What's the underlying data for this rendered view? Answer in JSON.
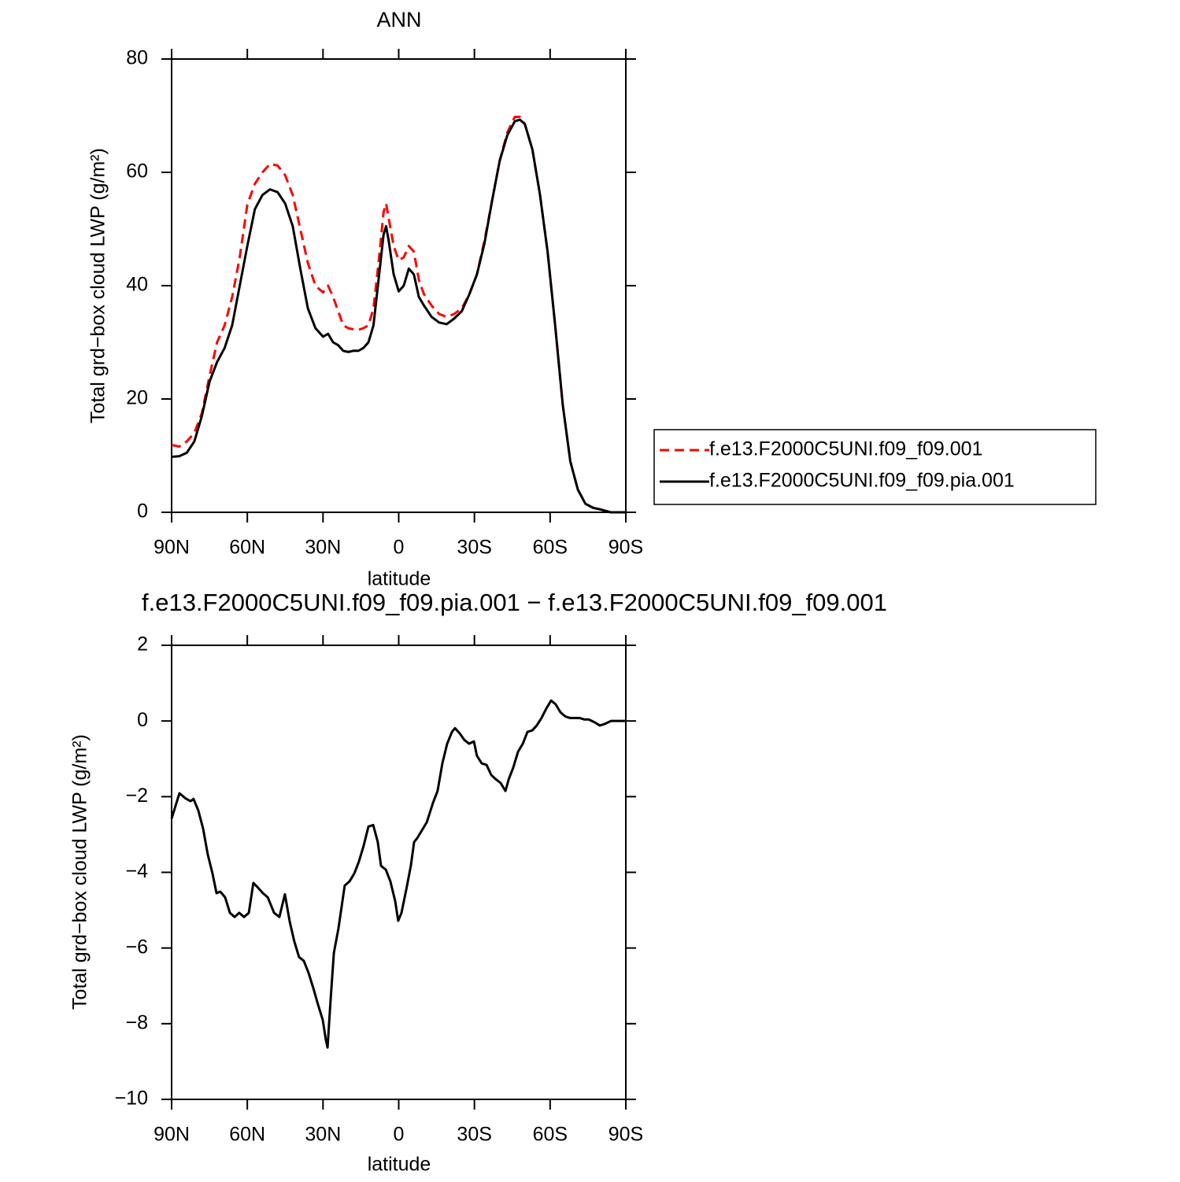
{
  "chart_data": [
    {
      "type": "line",
      "title": "ANN",
      "xlabel": "latitude",
      "ylabel": "Total grd−box cloud LWP (g/m²)",
      "x": [
        90,
        87,
        84,
        81,
        78,
        75,
        72,
        69,
        66,
        63,
        60,
        57,
        54,
        51,
        48,
        45,
        42,
        39,
        36,
        33,
        30,
        28,
        26,
        24,
        22,
        20,
        18,
        16,
        14,
        12,
        10,
        8,
        6,
        5,
        4,
        2,
        0,
        -2,
        -4,
        -6,
        -8,
        -10,
        -13,
        -16,
        -19,
        -22,
        -25,
        -28,
        -31,
        -34,
        -37,
        -40,
        -43,
        -46,
        -48,
        -50,
        -53,
        -56,
        -59,
        -62,
        -65,
        -68,
        -71,
        -74,
        -77,
        -80,
        -84,
        -90
      ],
      "series": [
        {
          "name": "f.e13.F2000C5UNI.f09_f09.001",
          "color": "#ff0000",
          "dashed": true,
          "values": [
            11.9,
            11.6,
            12.5,
            14,
            17.5,
            24,
            30,
            33,
            38,
            45,
            54.3,
            58,
            60,
            61.5,
            61.2,
            59.5,
            56,
            50,
            44,
            40,
            38.8,
            40,
            38,
            35.5,
            33,
            32.5,
            32.3,
            32.2,
            32.5,
            33,
            36,
            44,
            53,
            54.5,
            52,
            47,
            44.5,
            45,
            47,
            46,
            41,
            38.5,
            36.5,
            35,
            34.5,
            35,
            36,
            38.5,
            42,
            48,
            55,
            62,
            67,
            69.8,
            69.8,
            68.5,
            64,
            56,
            46,
            33,
            19,
            9,
            4,
            1.5,
            0.8,
            0.5,
            0,
            0
          ]
        },
        {
          "name": "f.e13.F2000C5UNI.f09_f09.pia.001",
          "color": "#000000",
          "dashed": false,
          "values": [
            9.8,
            9.9,
            10.5,
            12.5,
            17,
            23,
            26.5,
            29,
            33,
            40,
            47,
            53.5,
            56,
            57,
            56.5,
            54.5,
            50.5,
            43,
            36,
            32.5,
            31,
            31.5,
            30,
            29.5,
            28.5,
            28.3,
            28.5,
            28.5,
            29,
            30,
            33,
            41,
            49,
            50.5,
            48,
            42,
            39,
            40,
            43,
            42,
            38,
            36.5,
            34.5,
            33.5,
            33.2,
            34.2,
            35.5,
            38.5,
            42,
            47.5,
            55,
            62,
            66.5,
            69,
            69.3,
            68.5,
            64,
            56,
            46,
            33,
            19,
            9,
            4,
            1.5,
            0.8,
            0.5,
            0,
            0
          ]
        }
      ],
      "xlim": [
        90,
        -90
      ],
      "xticks": [
        {
          "value": 90,
          "label": "90N"
        },
        {
          "value": 60,
          "label": "60N"
        },
        {
          "value": 30,
          "label": "30N"
        },
        0,
        {
          "value": -30,
          "label": "30S"
        },
        {
          "value": -60,
          "label": "60S"
        },
        {
          "value": -90,
          "label": "90S"
        }
      ],
      "ylim": [
        0,
        80
      ],
      "yticks": [
        0,
        20,
        40,
        60,
        80
      ],
      "legend": "right"
    },
    {
      "type": "line",
      "title": "f.e13.F2000C5UNI.f09_f09.pia.001 − f.e13.F2000C5UNI.f09_f09.001",
      "xlabel": "latitude",
      "ylabel": "Total grd−box cloud LWP (g/m²)",
      "x": [
        90,
        86.9,
        84.4,
        82.5,
        81.3,
        79.4,
        77.5,
        75.7,
        73.8,
        72.2,
        70.7,
        68.8,
        66.9,
        65,
        63.2,
        61.3,
        59.4,
        57.6,
        55.7,
        53.8,
        51.9,
        49.4,
        47.3,
        45.1,
        43.2,
        41.4,
        39.5,
        37.6,
        35.7,
        33.8,
        32,
        30.1,
        28.9,
        28.2,
        27,
        25.7,
        23.9,
        21.4,
        19.5,
        17.6,
        15.8,
        13.9,
        12,
        10.1,
        8.3,
        7,
        5.1,
        3.3,
        1.4,
        0.2,
        -1.1,
        -3,
        -4.8,
        -6.1,
        -7.3,
        -9.2,
        -11.1,
        -13.6,
        -15.4,
        -17.3,
        -19.2,
        -21.1,
        -22.3,
        -24.2,
        -26,
        -27.9,
        -29.8,
        -31,
        -32.9,
        -34.8,
        -36.7,
        -38.5,
        -40.4,
        -42.3,
        -43.6,
        -45.4,
        -47.3,
        -49.2,
        -51,
        -52.9,
        -54.7,
        -56.6,
        -58.5,
        -60.4,
        -62.2,
        -64.1,
        -66,
        -67.8,
        -69.7,
        -71.6,
        -73.5,
        -75.3,
        -77.8,
        -79.7,
        -81.6,
        -84.1,
        -90
      ],
      "values": [
        -2.58,
        -1.91,
        -2.05,
        -2.12,
        -2.06,
        -2.37,
        -2.85,
        -3.52,
        -4.03,
        -4.55,
        -4.51,
        -4.66,
        -5.07,
        -5.18,
        -5.07,
        -5.18,
        -5.07,
        -4.28,
        -4.41,
        -4.55,
        -4.66,
        -5.07,
        -5.18,
        -4.58,
        -5.3,
        -5.82,
        -6.24,
        -6.34,
        -6.66,
        -7.07,
        -7.49,
        -7.9,
        -8.42,
        -8.63,
        -7.38,
        -6.13,
        -5.49,
        -4.35,
        -4.24,
        -4.03,
        -3.72,
        -3.3,
        -2.79,
        -2.75,
        -3.2,
        -3.83,
        -3.93,
        -4.24,
        -4.76,
        -5.28,
        -5.07,
        -4.45,
        -3.83,
        -3.2,
        -3.1,
        -2.89,
        -2.68,
        -2.16,
        -1.85,
        -1.12,
        -0.6,
        -0.29,
        -0.19,
        -0.33,
        -0.5,
        -0.6,
        -0.54,
        -0.92,
        -1.12,
        -1.16,
        -1.43,
        -1.54,
        -1.64,
        -1.85,
        -1.54,
        -1.23,
        -0.81,
        -0.6,
        -0.29,
        -0.25,
        -0.12,
        0.08,
        0.33,
        0.54,
        0.44,
        0.23,
        0.12,
        0.08,
        0.08,
        0.08,
        0.04,
        0.04,
        -0.04,
        -0.12,
        -0.08,
        0,
        0
      ],
      "color": "#000000",
      "xlim": [
        90,
        -90
      ],
      "xticks": [
        {
          "value": 90,
          "label": "90N"
        },
        {
          "value": 60,
          "label": "60N"
        },
        {
          "value": 30,
          "label": "30N"
        },
        0,
        {
          "value": -30,
          "label": "30S"
        },
        {
          "value": -60,
          "label": "60S"
        },
        {
          "value": -90,
          "label": "90S"
        }
      ],
      "ylim": [
        -10,
        2
      ],
      "yticks": [
        {
          "value": -10,
          "label": "−10"
        },
        {
          "value": -8,
          "label": "−8"
        },
        {
          "value": -6,
          "label": "−6"
        },
        {
          "value": -4,
          "label": "−4"
        },
        {
          "value": -2,
          "label": "−2"
        },
        0,
        2
      ]
    }
  ]
}
